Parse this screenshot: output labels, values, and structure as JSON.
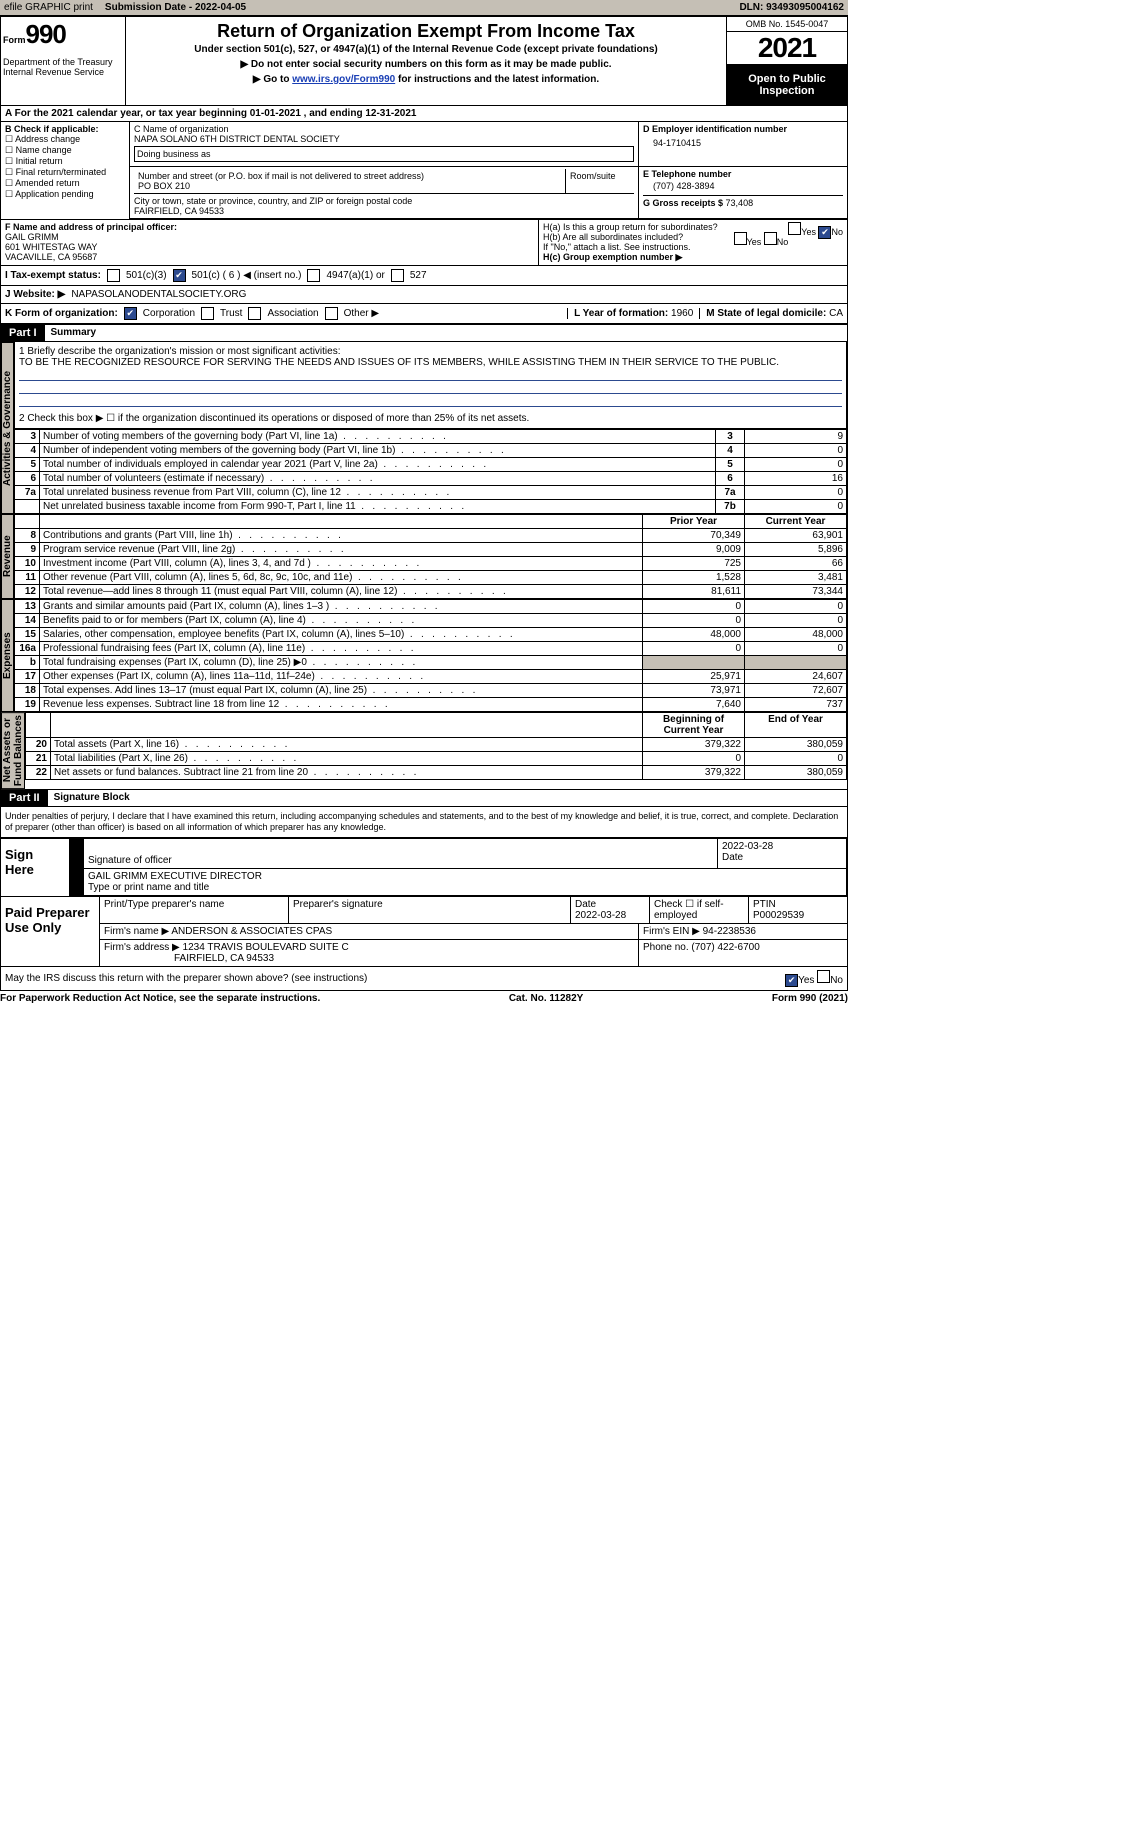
{
  "toolbar": {
    "efile": "efile GRAPHIC print",
    "sub_label": "Submission Date - ",
    "sub_date": "2022-04-05",
    "dln_label": "DLN: ",
    "dln": "93493095004162"
  },
  "header": {
    "form_word": "Form",
    "form_num": "990",
    "title": "Return of Organization Exempt From Income Tax",
    "subtitle": "Under section 501(c), 527, or 4947(a)(1) of the Internal Revenue Code (except private foundations)",
    "instr1": "▶ Do not enter social security numbers on this form as it may be made public.",
    "instr2_pre": "▶ Go to ",
    "instr2_link": "www.irs.gov/Form990",
    "instr2_post": " for instructions and the latest information.",
    "dept": "Department of the Treasury\nInternal Revenue Service",
    "omb": "OMB No. 1545-0047",
    "year": "2021",
    "open": "Open to Public Inspection"
  },
  "period": {
    "label_a": "A For the 2021 calendar year, or tax year beginning ",
    "begin": "01-01-2021",
    "mid": "   , and ending ",
    "end": "12-31-2021"
  },
  "colB": {
    "head": "B Check if applicable:",
    "items": [
      "Address change",
      "Name change",
      "Initial return",
      "Final return/terminated",
      "Amended return",
      "Application pending"
    ]
  },
  "colC": {
    "name_lbl": "C Name of organization",
    "name": "NAPA SOLANO 6TH DISTRICT DENTAL SOCIETY",
    "dba_lbl": "Doing business as",
    "addr_lbl": "Number and street (or P.O. box if mail is not delivered to street address)",
    "room_lbl": "Room/suite",
    "addr": "PO BOX 210",
    "city_lbl": "City or town, state or province, country, and ZIP or foreign postal code",
    "city": "FAIRFIELD, CA  94533"
  },
  "colD": {
    "ein_lbl": "D Employer identification number",
    "ein": "94-1710415",
    "tel_lbl": "E Telephone number",
    "tel": "(707) 428-3894",
    "gross_lbl": "G Gross receipts $ ",
    "gross": "73,408"
  },
  "officer": {
    "f_lbl": "F  Name and address of principal officer:",
    "name": "GAIL GRIMM",
    "addr1": "601 WHITESTAG WAY",
    "addr2": "VACAVILLE, CA  95687",
    "ha": "H(a)  Is this a group return for subordinates?",
    "hb": "H(b)  Are all subordinates included?",
    "yes": "Yes",
    "no": "No",
    "hnote": "If \"No,\" attach a list. See instructions.",
    "hc": "H(c)  Group exemption number ▶"
  },
  "status": {
    "i": "I  Tax-exempt status:",
    "o1": "501(c)(3)",
    "o2": "501(c) ( 6 ) ◀ (insert no.)",
    "o3": "4947(a)(1) or",
    "o4": "527"
  },
  "web": {
    "j": "J  Website: ▶",
    "url": " NAPASOLANODENTALSOCIETY.ORG"
  },
  "kform": {
    "k": "K Form of organization:",
    "opts": [
      "Corporation",
      "Trust",
      "Association",
      "Other ▶"
    ],
    "l": "L Year of formation: ",
    "lv": "1960",
    "m": "M State of legal domicile: ",
    "mv": "CA"
  },
  "parts": {
    "p1": "Part I",
    "p1t": "Summary",
    "p2": "Part II",
    "p2t": "Signature Block"
  },
  "mission": {
    "q1": "1  Briefly describe the organization's mission or most significant activities:",
    "text": "TO BE THE RECOGNIZED RESOURCE FOR SERVING THE NEEDS AND ISSUES OF ITS MEMBERS, WHILE ASSISTING THEM IN THEIR SERVICE TO THE PUBLIC.",
    "q2": "2   Check this box ▶ ☐  if the organization discontinued its operations or disposed of more than 25% of its net assets."
  },
  "tabs": {
    "act": "Activities & Governance",
    "rev": "Revenue",
    "exp": "Expenses",
    "net": "Net Assets or\nFund Balances"
  },
  "lines_act": [
    {
      "n": "3",
      "t": "Number of voting members of the governing body (Part VI, line 1a)",
      "ln": "3",
      "v": "9"
    },
    {
      "n": "4",
      "t": "Number of independent voting members of the governing body (Part VI, line 1b)",
      "ln": "4",
      "v": "0"
    },
    {
      "n": "5",
      "t": "Total number of individuals employed in calendar year 2021 (Part V, line 2a)",
      "ln": "5",
      "v": "0"
    },
    {
      "n": "6",
      "t": "Total number of volunteers (estimate if necessary)",
      "ln": "6",
      "v": "16"
    },
    {
      "n": "7a",
      "t": "Total unrelated business revenue from Part VIII, column (C), line 12",
      "ln": "7a",
      "v": "0"
    },
    {
      "n": "",
      "t": "Net unrelated business taxable income from Form 990-T, Part I, line 11",
      "ln": "7b",
      "v": "0"
    }
  ],
  "yr_hdr": {
    "prior": "Prior Year",
    "curr": "Current Year",
    "beg": "Beginning of Current Year",
    "end": "End of Year"
  },
  "lines_rev": [
    {
      "n": "8",
      "t": "Contributions and grants (Part VIII, line 1h)",
      "p": "70,349",
      "c": "63,901"
    },
    {
      "n": "9",
      "t": "Program service revenue (Part VIII, line 2g)",
      "p": "9,009",
      "c": "5,896"
    },
    {
      "n": "10",
      "t": "Investment income (Part VIII, column (A), lines 3, 4, and 7d )",
      "p": "725",
      "c": "66"
    },
    {
      "n": "11",
      "t": "Other revenue (Part VIII, column (A), lines 5, 6d, 8c, 9c, 10c, and 11e)",
      "p": "1,528",
      "c": "3,481"
    },
    {
      "n": "12",
      "t": "Total revenue—add lines 8 through 11 (must equal Part VIII, column (A), line 12)",
      "p": "81,611",
      "c": "73,344"
    }
  ],
  "lines_exp": [
    {
      "n": "13",
      "t": "Grants and similar amounts paid (Part IX, column (A), lines 1–3 )",
      "p": "0",
      "c": "0"
    },
    {
      "n": "14",
      "t": "Benefits paid to or for members (Part IX, column (A), line 4)",
      "p": "0",
      "c": "0"
    },
    {
      "n": "15",
      "t": "Salaries, other compensation, employee benefits (Part IX, column (A), lines 5–10)",
      "p": "48,000",
      "c": "48,000"
    },
    {
      "n": "16a",
      "t": "Professional fundraising fees (Part IX, column (A), line 11e)",
      "p": "0",
      "c": "0"
    },
    {
      "n": "b",
      "t": "Total fundraising expenses (Part IX, column (D), line 25) ▶0",
      "p": "",
      "c": "",
      "grey": true
    },
    {
      "n": "17",
      "t": "Other expenses (Part IX, column (A), lines 11a–11d, 11f–24e)",
      "p": "25,971",
      "c": "24,607"
    },
    {
      "n": "18",
      "t": "Total expenses. Add lines 13–17 (must equal Part IX, column (A), line 25)",
      "p": "73,971",
      "c": "72,607"
    },
    {
      "n": "19",
      "t": "Revenue less expenses. Subtract line 18 from line 12",
      "p": "7,640",
      "c": "737"
    }
  ],
  "lines_net": [
    {
      "n": "20",
      "t": "Total assets (Part X, line 16)",
      "p": "379,322",
      "c": "380,059"
    },
    {
      "n": "21",
      "t": "Total liabilities (Part X, line 26)",
      "p": "0",
      "c": "0"
    },
    {
      "n": "22",
      "t": "Net assets or fund balances. Subtract line 21 from line 20",
      "p": "379,322",
      "c": "380,059"
    }
  ],
  "penalty": "Under penalties of perjury, I declare that I have examined this return, including accompanying schedules and statements, and to the best of my knowledge and belief, it is true, correct, and complete. Declaration of preparer (other than officer) is based on all information of which preparer has any knowledge.",
  "sign": {
    "here": "Sign Here",
    "sig_lbl": "Signature of officer",
    "date": "2022-03-28",
    "date_lbl": "Date",
    "name": "GAIL GRIMM EXECUTIVE DIRECTOR",
    "name_lbl": "Type or print name and title"
  },
  "paid": {
    "head": "Paid Preparer Use Only",
    "pname_lbl": "Print/Type preparer's name",
    "psig_lbl": "Preparer's signature",
    "pdate_lbl": "Date",
    "pdate": "2022-03-28",
    "chk": "Check ☐ if self-employed",
    "ptin_lbl": "PTIN",
    "ptin": "P00029539",
    "firm_lbl": "Firm's name    ▶ ",
    "firm": "ANDERSON & ASSOCIATES CPAS",
    "fein_lbl": "Firm's EIN ▶ ",
    "fein": "94-2238536",
    "faddr_lbl": "Firm's address ▶ ",
    "faddr1": "1234 TRAVIS BOULEVARD SUITE C",
    "faddr2": "FAIRFIELD, CA  94533",
    "phone_lbl": "Phone no. ",
    "phone": "(707) 422-6700"
  },
  "discuss": "May the IRS discuss this return with the preparer shown above? (see instructions)",
  "foot": {
    "l": "For Paperwork Reduction Act Notice, see the separate instructions.",
    "c": "Cat. No. 11282Y",
    "r": "Form 990 (2021)"
  }
}
